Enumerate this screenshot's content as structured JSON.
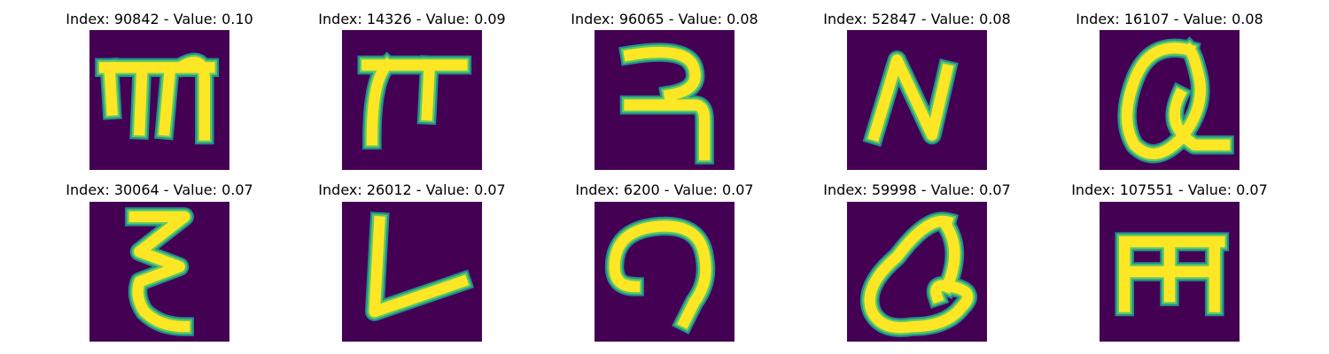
{
  "colors": {
    "background": "#440154",
    "stroke_outer": "#21918c",
    "stroke_mid": "#5ec962",
    "stroke_core": "#fde725"
  },
  "panels": [
    {
      "title": "Index: 90842 - Value: 0.10",
      "glyph": "devanagari-like-m"
    },
    {
      "title": "Index: 14326 - Value: 0.09",
      "glyph": "pi-like"
    },
    {
      "title": "Index: 96065 - Value: 0.08",
      "glyph": "devanagari-like-ra"
    },
    {
      "title": "Index: 52847 - Value: 0.08",
      "glyph": "n-like"
    },
    {
      "title": "Index: 16107 - Value: 0.08",
      "glyph": "q-like"
    },
    {
      "title": "Index: 30064 - Value: 0.07",
      "glyph": "epsilon-like"
    },
    {
      "title": "Index: 26012 - Value: 0.07",
      "glyph": "v-like"
    },
    {
      "title": "Index: 6200 - Value: 0.07",
      "glyph": "open-loop"
    },
    {
      "title": "Index: 59998 - Value: 0.07",
      "glyph": "q-like-2"
    },
    {
      "title": "Index: 107551 - Value: 0.07",
      "glyph": "e-rotated-like"
    }
  ]
}
